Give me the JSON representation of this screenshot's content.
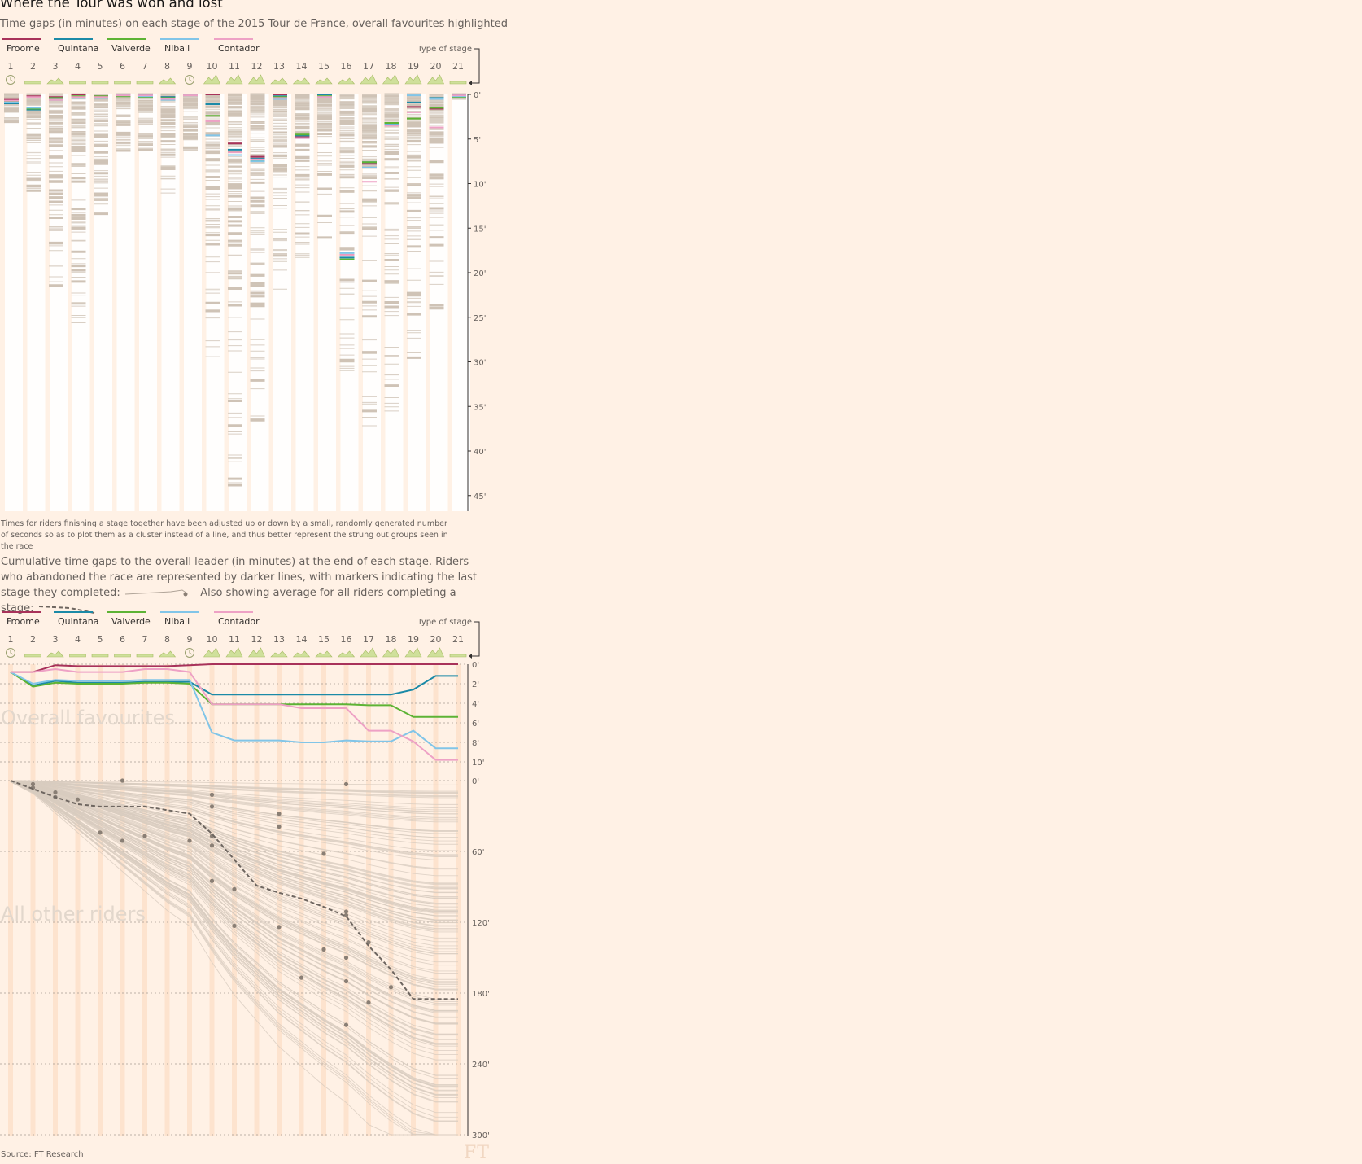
{
  "title": "Where the Tour was won and lost",
  "subtitle": "Time gaps (in minutes) on each stage of the 2015 Tour de France, overall favourites highlighted",
  "note": "Times for riders finishing a stage together have been adjusted up or down by a small, randomly generated number of seconds so as to plot them as a cluster instead of a line, and thus better represent the strung out groups seen in the race",
  "chart2_description_1": "Cumulative time gaps to the overall leader (in minutes) at the end of each stage. Riders who abandoned the race are represented by darker lines, with markers indicating the last stage they completed:",
  "chart2_description_2": "Also showing average for all riders completing a stage:",
  "source": "Source: FT Research",
  "logo": "FT",
  "stage_type_label": "Type of stage",
  "colors": {
    "background": "#fff1e5",
    "Froome": "#a8325a",
    "Quintana": "#1b8aa7",
    "Valverde": "#5db335",
    "Nibali": "#81c5e8",
    "Contador": "#eea1c5",
    "other": "#c9bdb0",
    "average": "#6e6660"
  },
  "stages": [
    "1",
    "2",
    "3",
    "4",
    "5",
    "6",
    "7",
    "8",
    "9",
    "10",
    "11",
    "12",
    "13",
    "14",
    "15",
    "16",
    "17",
    "18",
    "19",
    "20",
    "21"
  ],
  "stage_types": [
    "time-trial",
    "flat",
    "hilly",
    "flat",
    "flat",
    "flat",
    "flat",
    "hilly",
    "time-trial",
    "mountain",
    "mountain",
    "mountain",
    "hilly",
    "hilly",
    "hilly",
    "hilly",
    "mountain",
    "mountain",
    "mountain",
    "mountain",
    "flat"
  ],
  "chart_data": [
    {
      "type": "scatter",
      "title": "Time gaps (in minutes) on each stage of the 2015 Tour de France, overall favourites highlighted",
      "x": [
        "1",
        "2",
        "3",
        "4",
        "5",
        "6",
        "7",
        "8",
        "9",
        "10",
        "11",
        "12",
        "13",
        "14",
        "15",
        "16",
        "17",
        "18",
        "19",
        "20",
        "21"
      ],
      "ylabel": "",
      "y_ticks": [
        "0'",
        "5'",
        "10'",
        "15'",
        "20'",
        "25'",
        "30'",
        "35'",
        "40'",
        "45'"
      ],
      "ylim": [
        0,
        47
      ],
      "legend": [
        "Froome",
        "Quintana",
        "Valverde",
        "Nibali",
        "Contador"
      ],
      "legend_position": "top-left",
      "series": [
        {
          "name": "Froome",
          "values": [
            0.6,
            0.2,
            0.3,
            0.0,
            0.2,
            0.0,
            0.0,
            0.3,
            0.0,
            0.0,
            5.5,
            7.0,
            0.0,
            4.8,
            0.0,
            18.0,
            7.8,
            3.3,
            1.4,
            1.6,
            0.0
          ]
        },
        {
          "name": "Quintana",
          "values": [
            1.0,
            1.7,
            0.4,
            0.3,
            0.3,
            0.0,
            0.0,
            0.3,
            0.0,
            1.1,
            6.2,
            7.2,
            0.2,
            4.6,
            0.0,
            18.3,
            7.6,
            3.3,
            0.9,
            0.4,
            0.0
          ]
        },
        {
          "name": "Valverde",
          "values": [
            0.8,
            1.6,
            0.4,
            0.2,
            0.2,
            0.2,
            0.3,
            0.4,
            0.0,
            2.4,
            6.4,
            7.4,
            0.3,
            4.5,
            0.2,
            18.5,
            7.6,
            3.2,
            2.7,
            1.5,
            0.3
          ]
        },
        {
          "name": "Nibali",
          "values": [
            0.9,
            1.5,
            0.6,
            0.4,
            0.4,
            0.1,
            0.2,
            0.6,
            0.1,
            4.6,
            6.8,
            7.5,
            0.5,
            4.9,
            0.3,
            17.8,
            8.2,
            3.4,
            0.1,
            0.5,
            0.2
          ]
        },
        {
          "name": "Contador",
          "values": [
            0.7,
            0.3,
            0.6,
            0.3,
            0.3,
            0.1,
            0.1,
            0.5,
            0.1,
            3.0,
            6.5,
            7.3,
            0.4,
            4.9,
            0.3,
            18.0,
            9.8,
            3.5,
            2.0,
            3.7,
            0.1
          ]
        }
      ],
      "other_riders_spread_max": [
        3.4,
        11.3,
        21.6,
        26.3,
        14.6,
        6.5,
        6.5,
        11.3,
        6.6,
        29.7,
        46.1,
        37.5,
        21.9,
        20.5,
        16.1,
        31.0,
        37.5,
        35.8,
        30.5,
        24.1,
        0.5
      ],
      "x_grid": true
    },
    {
      "type": "line",
      "title": "Overall favourites",
      "x": [
        "1",
        "2",
        "3",
        "4",
        "5",
        "6",
        "7",
        "8",
        "9",
        "10",
        "11",
        "12",
        "13",
        "14",
        "15",
        "16",
        "17",
        "18",
        "19",
        "20",
        "21"
      ],
      "y_ticks": [
        "0'",
        "2'",
        "4'",
        "6'",
        "8'",
        "10'"
      ],
      "ylim": [
        0,
        10
      ],
      "series": [
        {
          "name": "Froome",
          "values": [
            0.8,
            0.8,
            0.1,
            0.2,
            0.2,
            0.2,
            0.2,
            0.2,
            0.1,
            0.0,
            0.0,
            0.0,
            0.0,
            0.0,
            0.0,
            0.0,
            0.0,
            0.0,
            0.0,
            0.0,
            0.0
          ]
        },
        {
          "name": "Quintana",
          "values": [
            0.8,
            2.2,
            1.7,
            1.9,
            1.9,
            1.9,
            1.8,
            1.8,
            1.8,
            3.1,
            3.1,
            3.1,
            3.1,
            3.1,
            3.1,
            3.1,
            3.1,
            3.1,
            2.6,
            1.2,
            1.2
          ]
        },
        {
          "name": "Valverde",
          "values": [
            0.8,
            2.3,
            1.9,
            2.0,
            2.0,
            2.0,
            1.9,
            1.9,
            2.0,
            4.1,
            4.1,
            4.1,
            4.1,
            4.1,
            4.1,
            4.1,
            4.2,
            4.2,
            5.4,
            5.4,
            5.4
          ]
        },
        {
          "name": "Nibali",
          "values": [
            0.8,
            2.0,
            1.6,
            1.7,
            1.7,
            1.7,
            1.6,
            1.6,
            1.6,
            7.0,
            7.8,
            7.8,
            7.8,
            8.0,
            8.0,
            7.8,
            7.9,
            7.9,
            6.8,
            8.6,
            8.6
          ]
        },
        {
          "name": "Contador",
          "values": [
            0.8,
            0.8,
            0.5,
            0.8,
            0.8,
            0.8,
            0.5,
            0.5,
            0.8,
            4.1,
            4.1,
            4.1,
            4.1,
            4.5,
            4.5,
            4.5,
            6.8,
            6.8,
            7.9,
            9.8,
            9.8
          ]
        }
      ],
      "grid": true
    },
    {
      "type": "line",
      "title": "All other riders",
      "x": [
        "1",
        "2",
        "3",
        "4",
        "5",
        "6",
        "7",
        "8",
        "9",
        "10",
        "11",
        "12",
        "13",
        "14",
        "15",
        "16",
        "17",
        "18",
        "19",
        "20",
        "21"
      ],
      "y_ticks": [
        "0'",
        "60'",
        "120'",
        "180'",
        "240'",
        "300'"
      ],
      "ylim": [
        0,
        300
      ],
      "series": [
        {
          "name": "",
          "values": [
            0,
            7,
            14,
            20,
            22,
            22,
            22,
            25,
            28,
            45,
            67,
            89,
            95,
            100,
            107,
            115,
            140,
            160,
            185,
            185,
            185
          ]
        }
      ],
      "other_riders_range_max": [
        1,
        10,
        25,
        40,
        55,
        70,
        85,
        100,
        112,
        140,
        165,
        185,
        205,
        220,
        235,
        248,
        265,
        280,
        293,
        300,
        300
      ],
      "abandon_markers": [
        {
          "stage": "2",
          "minutes": 3
        },
        {
          "stage": "2",
          "minutes": 6
        },
        {
          "stage": "3",
          "minutes": 10
        },
        {
          "stage": "3",
          "minutes": 14
        },
        {
          "stage": "4",
          "minutes": 16
        },
        {
          "stage": "6",
          "minutes": 0
        },
        {
          "stage": "5",
          "minutes": 44
        },
        {
          "stage": "6",
          "minutes": 51
        },
        {
          "stage": "7",
          "minutes": 47
        },
        {
          "stage": "9",
          "minutes": 51
        },
        {
          "stage": "10",
          "minutes": 12
        },
        {
          "stage": "10",
          "minutes": 22
        },
        {
          "stage": "10",
          "minutes": 47
        },
        {
          "stage": "10",
          "minutes": 55
        },
        {
          "stage": "10",
          "minutes": 85
        },
        {
          "stage": "11",
          "minutes": 92
        },
        {
          "stage": "11",
          "minutes": 123
        },
        {
          "stage": "13",
          "minutes": 28
        },
        {
          "stage": "13",
          "minutes": 39
        },
        {
          "stage": "13",
          "minutes": 124
        },
        {
          "stage": "14",
          "minutes": 167
        },
        {
          "stage": "15",
          "minutes": 62
        },
        {
          "stage": "15",
          "minutes": 143
        },
        {
          "stage": "16",
          "minutes": 3
        },
        {
          "stage": "16",
          "minutes": 111
        },
        {
          "stage": "16",
          "minutes": 114
        },
        {
          "stage": "16",
          "minutes": 150
        },
        {
          "stage": "16",
          "minutes": 170
        },
        {
          "stage": "16",
          "minutes": 207
        },
        {
          "stage": "17",
          "minutes": 137
        },
        {
          "stage": "17",
          "minutes": 188
        },
        {
          "stage": "18",
          "minutes": 175
        }
      ]
    }
  ]
}
